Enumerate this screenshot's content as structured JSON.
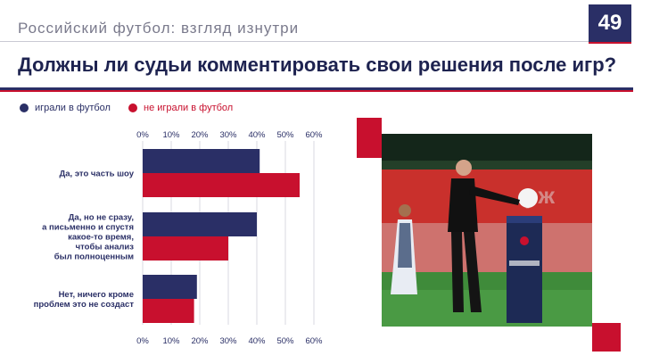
{
  "header": {
    "section_title": "Российский футбол: взгляд изнутри",
    "page_number": "49",
    "headline": "Должны ли судьи комментировать свои решения после игр?"
  },
  "legend": [
    {
      "label": "играли в футбол",
      "color": "#2a2f66"
    },
    {
      "label": "не играли в футбол",
      "color": "#c8102e"
    }
  ],
  "chart_data": {
    "type": "bar",
    "orientation": "horizontal",
    "categories": [
      [
        "Да, это часть шоу"
      ],
      [
        "Да, но не сразу,",
        "а письменно и спустя",
        "какое-то время,",
        "чтобы анализ",
        "был полноценным"
      ],
      [
        "Нет, ничего кроме",
        "проблем это не создаст"
      ]
    ],
    "series": [
      {
        "name": "играли в футбол",
        "color": "#2a2f66",
        "values": [
          41,
          40,
          19
        ]
      },
      {
        "name": "не играли в футбол",
        "color": "#c8102e",
        "values": [
          55,
          30,
          18
        ]
      }
    ],
    "xlim": [
      0,
      60
    ],
    "ticks": [
      "0%",
      "10%",
      "20%",
      "30%",
      "40%",
      "50%",
      "60%"
    ],
    "tick_values": [
      0,
      10,
      20,
      30,
      40,
      50,
      60
    ],
    "grid": true,
    "legend_position": "top-left"
  },
  "photo": {
    "icon": "referee-photo"
  }
}
